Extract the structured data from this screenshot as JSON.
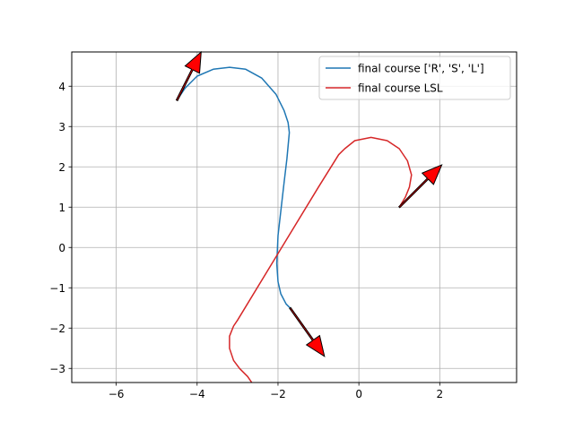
{
  "chart_data": {
    "type": "line",
    "title": "",
    "xlabel": "",
    "ylabel": "",
    "xlim": [
      -7.1,
      3.9
    ],
    "ylim": [
      -3.35,
      4.85
    ],
    "xticks": [
      -6,
      -4,
      -2,
      0,
      2
    ],
    "yticks": [
      -3,
      -2,
      -1,
      0,
      1,
      2,
      3,
      4
    ],
    "grid": true,
    "legend_position": "top-right",
    "series": [
      {
        "name": "final course ['R', 'S', 'L']",
        "color": "#1f77b4",
        "x": [
          -4.5,
          -4.3,
          -4.0,
          -3.6,
          -3.2,
          -2.8,
          -2.4,
          -2.05,
          -1.85,
          -1.75,
          -1.72,
          -1.78,
          -1.85,
          -1.92,
          -2.0,
          -2.03,
          -2.0,
          -1.93,
          -1.8,
          -1.7
        ],
        "y": [
          3.65,
          3.95,
          4.25,
          4.42,
          4.47,
          4.42,
          4.2,
          3.8,
          3.4,
          3.1,
          2.85,
          2.2,
          1.6,
          1.0,
          0.3,
          -0.4,
          -0.85,
          -1.15,
          -1.4,
          -1.5
        ]
      },
      {
        "name": "final course LSL",
        "color": "#d62728",
        "x": [
          -2.65,
          -2.75,
          -2.95,
          -3.1,
          -3.2,
          -3.2,
          -3.1,
          -3.0,
          -2.0,
          -1.0,
          -0.5,
          -0.35,
          -0.1,
          0.3,
          0.7,
          1.0,
          1.2,
          1.3,
          1.25,
          1.15,
          1.0
        ],
        "y": [
          -3.35,
          -3.2,
          -3.0,
          -2.8,
          -2.5,
          -2.2,
          -1.95,
          -1.8,
          -0.15,
          1.5,
          2.3,
          2.45,
          2.65,
          2.73,
          2.65,
          2.45,
          2.15,
          1.8,
          1.5,
          1.25,
          1.0
        ]
      }
    ],
    "arrows": [
      {
        "start": [
          -4.5,
          3.65
        ],
        "end": [
          -3.9,
          4.85
        ],
        "color": "#ff0000"
      },
      {
        "start": [
          -1.7,
          -1.5
        ],
        "end": [
          -0.85,
          -2.7
        ],
        "color": "#ff0000"
      },
      {
        "start": [
          1.0,
          1.0
        ],
        "end": [
          2.05,
          2.05
        ],
        "color": "#ff0000"
      },
      {
        "start": [
          -2.65,
          -3.35
        ],
        "end": [
          -2.65,
          -3.35
        ],
        "color": "#ff0000"
      }
    ]
  }
}
